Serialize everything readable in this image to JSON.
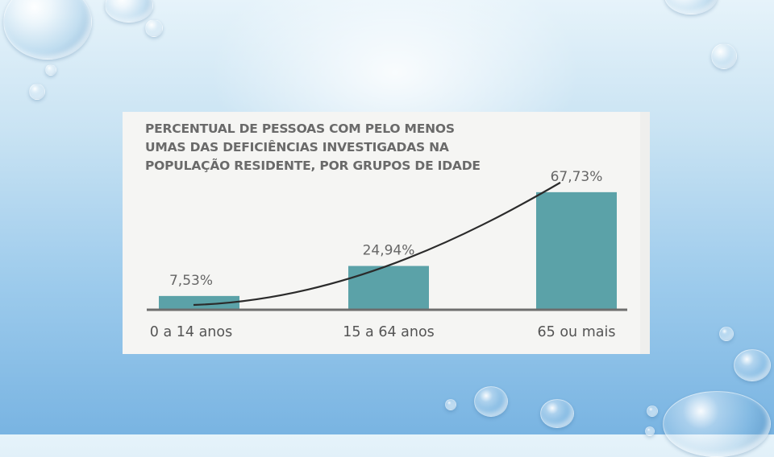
{
  "chart_data": {
    "type": "bar",
    "title_lines": [
      "PERCENTUAL DE PESSOAS COM PELO MENOS",
      "UMAS DAS DEFICIÊNCIAS INVESTIGADAS NA",
      "POPULAÇÃO RESIDENTE, POR GRUPOS DE IDADE"
    ],
    "categories": [
      "0 a 14 anos",
      "15 a 64 anos",
      "65 ou mais"
    ],
    "values": [
      7.53,
      24.94,
      67.73
    ],
    "value_labels": [
      "7,53%",
      "24,94%",
      "67,73%"
    ],
    "unit": "%",
    "ylim": [
      0,
      70
    ],
    "grid": false,
    "legend": "none",
    "trend_line": "exponential curve through bar tops",
    "colors": {
      "bar": "#5ba2a8",
      "trend": "#2b2b2b",
      "baseline": "#6e6e6e"
    }
  }
}
